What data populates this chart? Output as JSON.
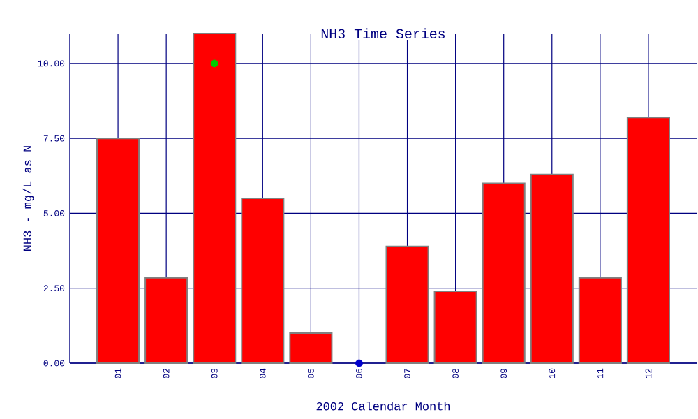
{
  "chart_data": {
    "type": "bar",
    "title": "NH3 Time Series",
    "xlabel": "2002 Calendar Month",
    "ylabel": "NH3 - mg/L as N",
    "categories": [
      "01",
      "02",
      "03",
      "04",
      "05",
      "06",
      "07",
      "08",
      "09",
      "10",
      "11",
      "12"
    ],
    "series": [
      {
        "color": "#ff0000",
        "values": [
          7.5,
          2.85,
          11,
          5.5,
          1.0,
          null,
          3.9,
          2.4,
          6.0,
          6.3,
          2.85,
          8.2
        ]
      },
      {
        "type": "scatter",
        "color": "#00cc00",
        "x": [
          "03"
        ],
        "values": [
          10
        ]
      },
      {
        "type": "scatter",
        "color": "#0000cc",
        "x": [
          "06"
        ],
        "values": [
          0
        ]
      }
    ],
    "ylim": [
      0,
      11
    ],
    "yticks": [
      {
        "value": 0,
        "label": "0.00"
      },
      {
        "value": 2.5,
        "label": "2.50"
      },
      {
        "value": 5,
        "label": "5.00"
      },
      {
        "value": 7.5,
        "label": "7.50"
      },
      {
        "value": 10,
        "label": "10.00"
      }
    ],
    "grid": true,
    "marker": "circle"
  }
}
